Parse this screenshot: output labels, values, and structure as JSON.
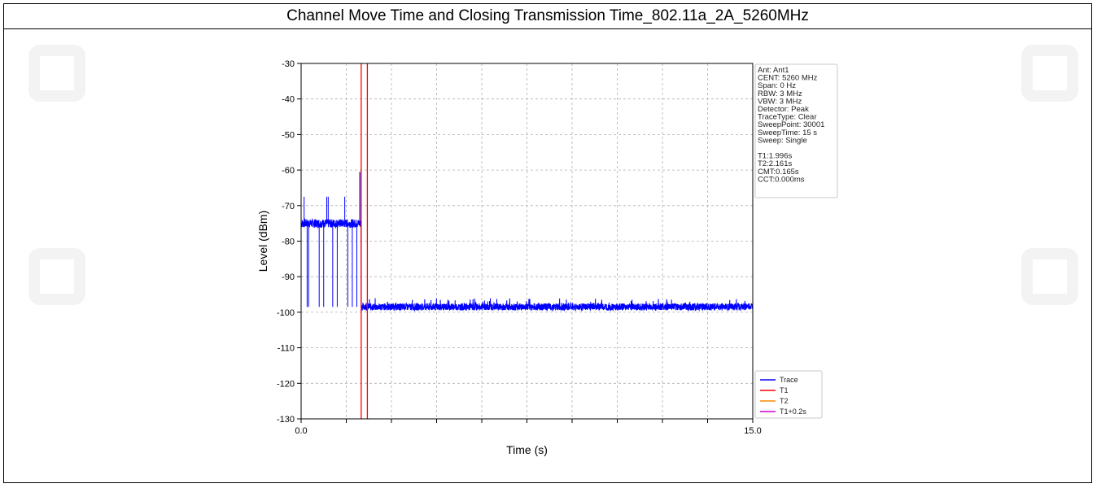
{
  "title": "Channel Move Time and Closing Transmission Time_802.11a_2A_5260MHz",
  "chart_data": {
    "type": "line",
    "xlabel": "Time (s)",
    "ylabel": "Level (dBm)",
    "xlim": [
      0.0,
      15.0
    ],
    "ylim": [
      -130,
      -30
    ],
    "x_tick_labels": [
      "0.0",
      "15.0"
    ],
    "x_minor_ticks": [
      1.5,
      3.0,
      4.5,
      6.0,
      7.5,
      9.0,
      10.5,
      12.0,
      13.5
    ],
    "y_ticks": [
      -30,
      -40,
      -50,
      -60,
      -70,
      -80,
      -90,
      -100,
      -110,
      -120,
      -130
    ],
    "grid": true,
    "legend_position": "lower-right",
    "series": [
      {
        "name": "Trace",
        "color": "#0000ff",
        "noise_floor_before": -75,
        "noise_floor_after": -98.5,
        "transition_time": 1.996,
        "peak": {
          "x": 1.95,
          "y": -60.5
        },
        "spikes_up": [
          0.1,
          0.85,
          0.9,
          1.45
        ],
        "spikes_down": [
          0.2,
          0.25,
          0.6,
          0.75,
          1.05,
          1.2,
          1.55,
          1.7,
          1.85
        ]
      },
      {
        "name": "T1",
        "color": "#ff0000",
        "x": 1.996
      },
      {
        "name": "T2",
        "color": "#ff8c00",
        "x": 2.161
      },
      {
        "name": "T1+0.2s",
        "color": "#cc00cc",
        "x": 2.196
      }
    ],
    "marker_lines": [
      {
        "x": 1.996,
        "color": "#ff0000"
      },
      {
        "x": 2.2,
        "color": "#ff0000"
      }
    ],
    "info_box": [
      "Ant: Ant1",
      "CENT: 5260 MHz",
      "Span: 0 Hz",
      "RBW: 3 MHz",
      "VBW: 3 MHz",
      "Detector: Peak",
      "TraceType: Clear",
      "SweepPoint: 30001",
      "SweepTime: 15 s",
      "Sweep: Single",
      "",
      "T1:1.996s",
      "T2:2.161s",
      "CMT:0.165s",
      "CCT:0.000ms"
    ]
  }
}
